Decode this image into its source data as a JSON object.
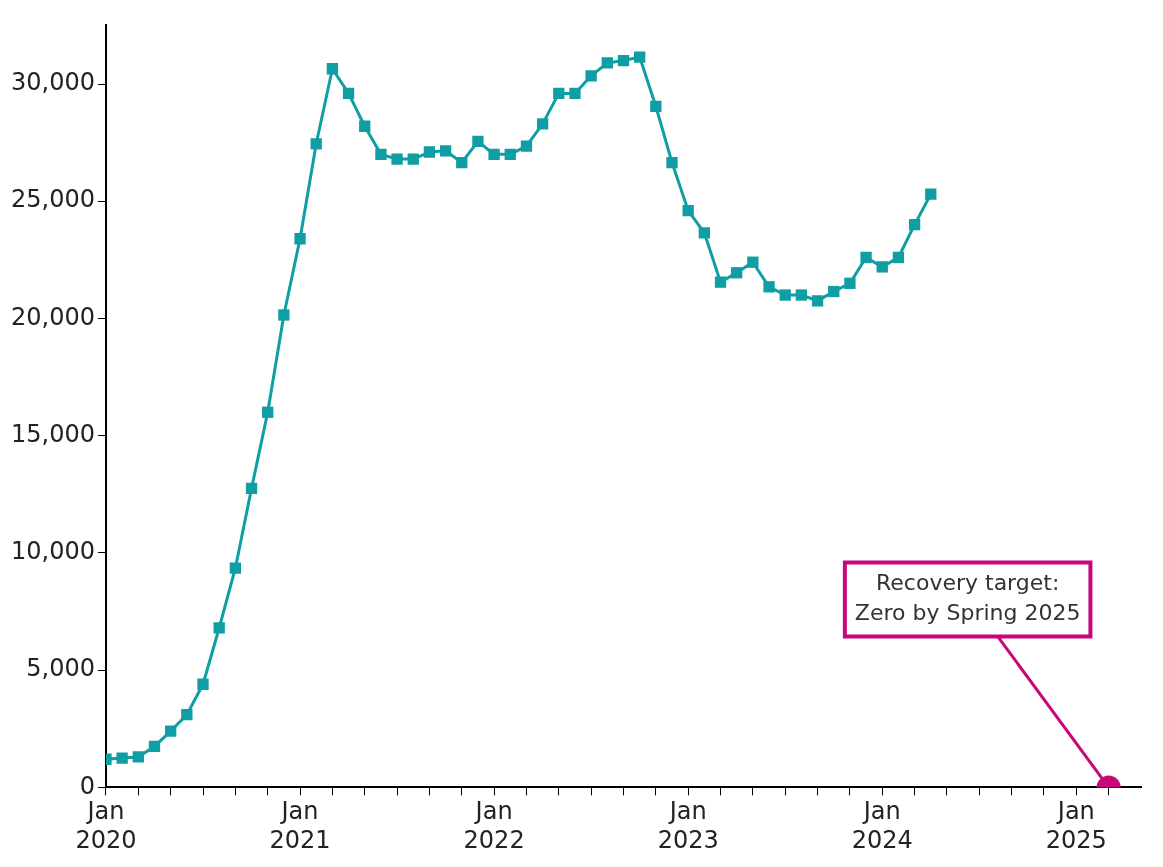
{
  "chart_data": {
    "type": "line",
    "marker": "square",
    "line_style": "solid",
    "grid": false,
    "legend": false,
    "xlim": [
      "2020-01",
      "2025-05"
    ],
    "ylim": [
      0,
      32500
    ],
    "yticks": [
      {
        "value": 0,
        "label": "0"
      },
      {
        "value": 5000,
        "label": "5,000"
      },
      {
        "value": 10000,
        "label": "10,000"
      },
      {
        "value": 15000,
        "label": "15,000"
      },
      {
        "value": 20000,
        "label": "20,000"
      },
      {
        "value": 25000,
        "label": "25,000"
      },
      {
        "value": 30000,
        "label": "30,000"
      }
    ],
    "xticks": [
      {
        "value": "2020-01",
        "label": "Jan 2020"
      },
      {
        "value": "2020-03",
        "label": null
      },
      {
        "value": "2020-05",
        "label": null
      },
      {
        "value": "2020-07",
        "label": null
      },
      {
        "value": "2020-09",
        "label": null
      },
      {
        "value": "2020-11",
        "label": null
      },
      {
        "value": "2021-01",
        "label": "Jan 2021"
      },
      {
        "value": "2021-03",
        "label": null
      },
      {
        "value": "2021-05",
        "label": null
      },
      {
        "value": "2021-07",
        "label": null
      },
      {
        "value": "2021-09",
        "label": null
      },
      {
        "value": "2021-11",
        "label": null
      },
      {
        "value": "2022-01",
        "label": "Jan 2022"
      },
      {
        "value": "2022-03",
        "label": null
      },
      {
        "value": "2022-05",
        "label": null
      },
      {
        "value": "2022-07",
        "label": null
      },
      {
        "value": "2022-09",
        "label": null
      },
      {
        "value": "2022-11",
        "label": null
      },
      {
        "value": "2023-01",
        "label": "Jan 2023"
      },
      {
        "value": "2023-03",
        "label": null
      },
      {
        "value": "2023-05",
        "label": null
      },
      {
        "value": "2023-07",
        "label": null
      },
      {
        "value": "2023-09",
        "label": null
      },
      {
        "value": "2023-11",
        "label": null
      },
      {
        "value": "2024-01",
        "label": "Jan 2024"
      },
      {
        "value": "2024-03",
        "label": null
      },
      {
        "value": "2024-05",
        "label": null
      },
      {
        "value": "2024-07",
        "label": null
      },
      {
        "value": "2024-09",
        "label": null
      },
      {
        "value": "2024-11",
        "label": null
      },
      {
        "value": "2025-01",
        "label": "Jan 2025"
      },
      {
        "value": "2025-03",
        "label": null
      }
    ],
    "x": [
      "2020-01",
      "2020-02",
      "2020-03",
      "2020-04",
      "2020-05",
      "2020-06",
      "2020-07",
      "2020-08",
      "2020-09",
      "2020-10",
      "2020-11",
      "2020-12",
      "2021-01",
      "2021-02",
      "2021-03",
      "2021-04",
      "2021-05",
      "2021-06",
      "2021-07",
      "2021-08",
      "2021-09",
      "2021-10",
      "2021-11",
      "2021-12",
      "2022-01",
      "2022-02",
      "2022-03",
      "2022-04",
      "2022-05",
      "2022-06",
      "2022-07",
      "2022-08",
      "2022-09",
      "2022-10",
      "2022-11",
      "2022-12",
      "2023-01",
      "2023-02",
      "2023-03",
      "2023-04",
      "2023-05",
      "2023-06",
      "2023-07",
      "2023-08",
      "2023-09",
      "2023-10",
      "2023-11",
      "2023-12",
      "2024-01",
      "2024-02",
      "2024-03",
      "2024-04"
    ],
    "series": [
      {
        "color": "#0e9ea3",
        "values": [
          1200,
          1250,
          1300,
          1750,
          2400,
          3100,
          4400,
          6800,
          9350,
          12750,
          16000,
          20150,
          23400,
          27450,
          30650,
          29600,
          28200,
          27000,
          26800,
          26800,
          27100,
          27150,
          26650,
          27550,
          27000,
          27000,
          27350,
          28300,
          29600,
          29600,
          30350,
          30900,
          31000,
          31150,
          29050,
          26650,
          24600,
          23650,
          21550,
          21950,
          22400,
          21350,
          21000,
          21000,
          20750,
          21150,
          21500,
          22600,
          22200,
          22600,
          24000,
          25300
        ]
      },
      {
        "type": "scatter",
        "marker": "circle",
        "color": "#c8077a",
        "x": [
          "2025-03"
        ],
        "values": [
          0
        ]
      }
    ],
    "annotations": [
      {
        "text": "Recovery target:\nZero by Spring 2025",
        "x": "2025-03",
        "y": 0
      }
    ]
  }
}
